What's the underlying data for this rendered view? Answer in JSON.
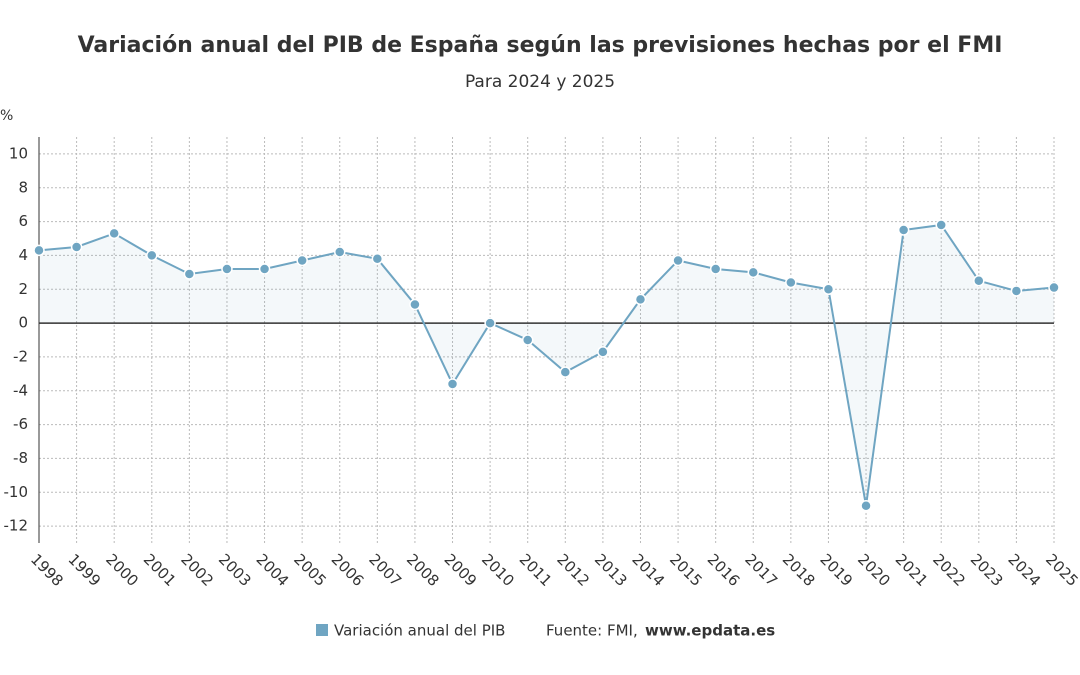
{
  "chart_data": {
    "type": "line",
    "title": "Variación anual del PIB de España según las previsiones hechas por el FMI",
    "subtitle": "Para 2024 y 2025",
    "y_unit": "%",
    "x": [
      1998,
      1999,
      2000,
      2001,
      2002,
      2003,
      2004,
      2005,
      2006,
      2007,
      2008,
      2009,
      2010,
      2011,
      2012,
      2013,
      2014,
      2015,
      2016,
      2017,
      2018,
      2019,
      2020,
      2021,
      2022,
      2023,
      2024,
      2025
    ],
    "series": [
      {
        "name": "Variación anual del PIB",
        "color": "#6fa5c2",
        "values": [
          4.3,
          4.5,
          5.3,
          4.0,
          2.9,
          3.2,
          3.2,
          3.7,
          4.2,
          3.8,
          1.1,
          -3.6,
          0.0,
          -1.0,
          -2.9,
          -1.7,
          1.4,
          3.7,
          3.2,
          3.0,
          2.4,
          2.0,
          -10.8,
          5.5,
          5.8,
          2.5,
          1.9,
          2.1
        ]
      }
    ],
    "xlim": [
      1998,
      2025
    ],
    "xticks": [
      1998,
      1999,
      2000,
      2001,
      2002,
      2003,
      2004,
      2005,
      2006,
      2007,
      2008,
      2009,
      2010,
      2011,
      2012,
      2013,
      2014,
      2015,
      2016,
      2017,
      2018,
      2019,
      2020,
      2021,
      2022,
      2023,
      2024,
      2025
    ],
    "ylim": [
      -13,
      11
    ],
    "yticks": [
      -12,
      -10,
      -8,
      -6,
      -4,
      -2,
      0,
      2,
      4,
      6,
      8,
      10
    ],
    "grid": true,
    "source_label": "Fuente: FMI,",
    "source_url": "www.epdata.es"
  }
}
